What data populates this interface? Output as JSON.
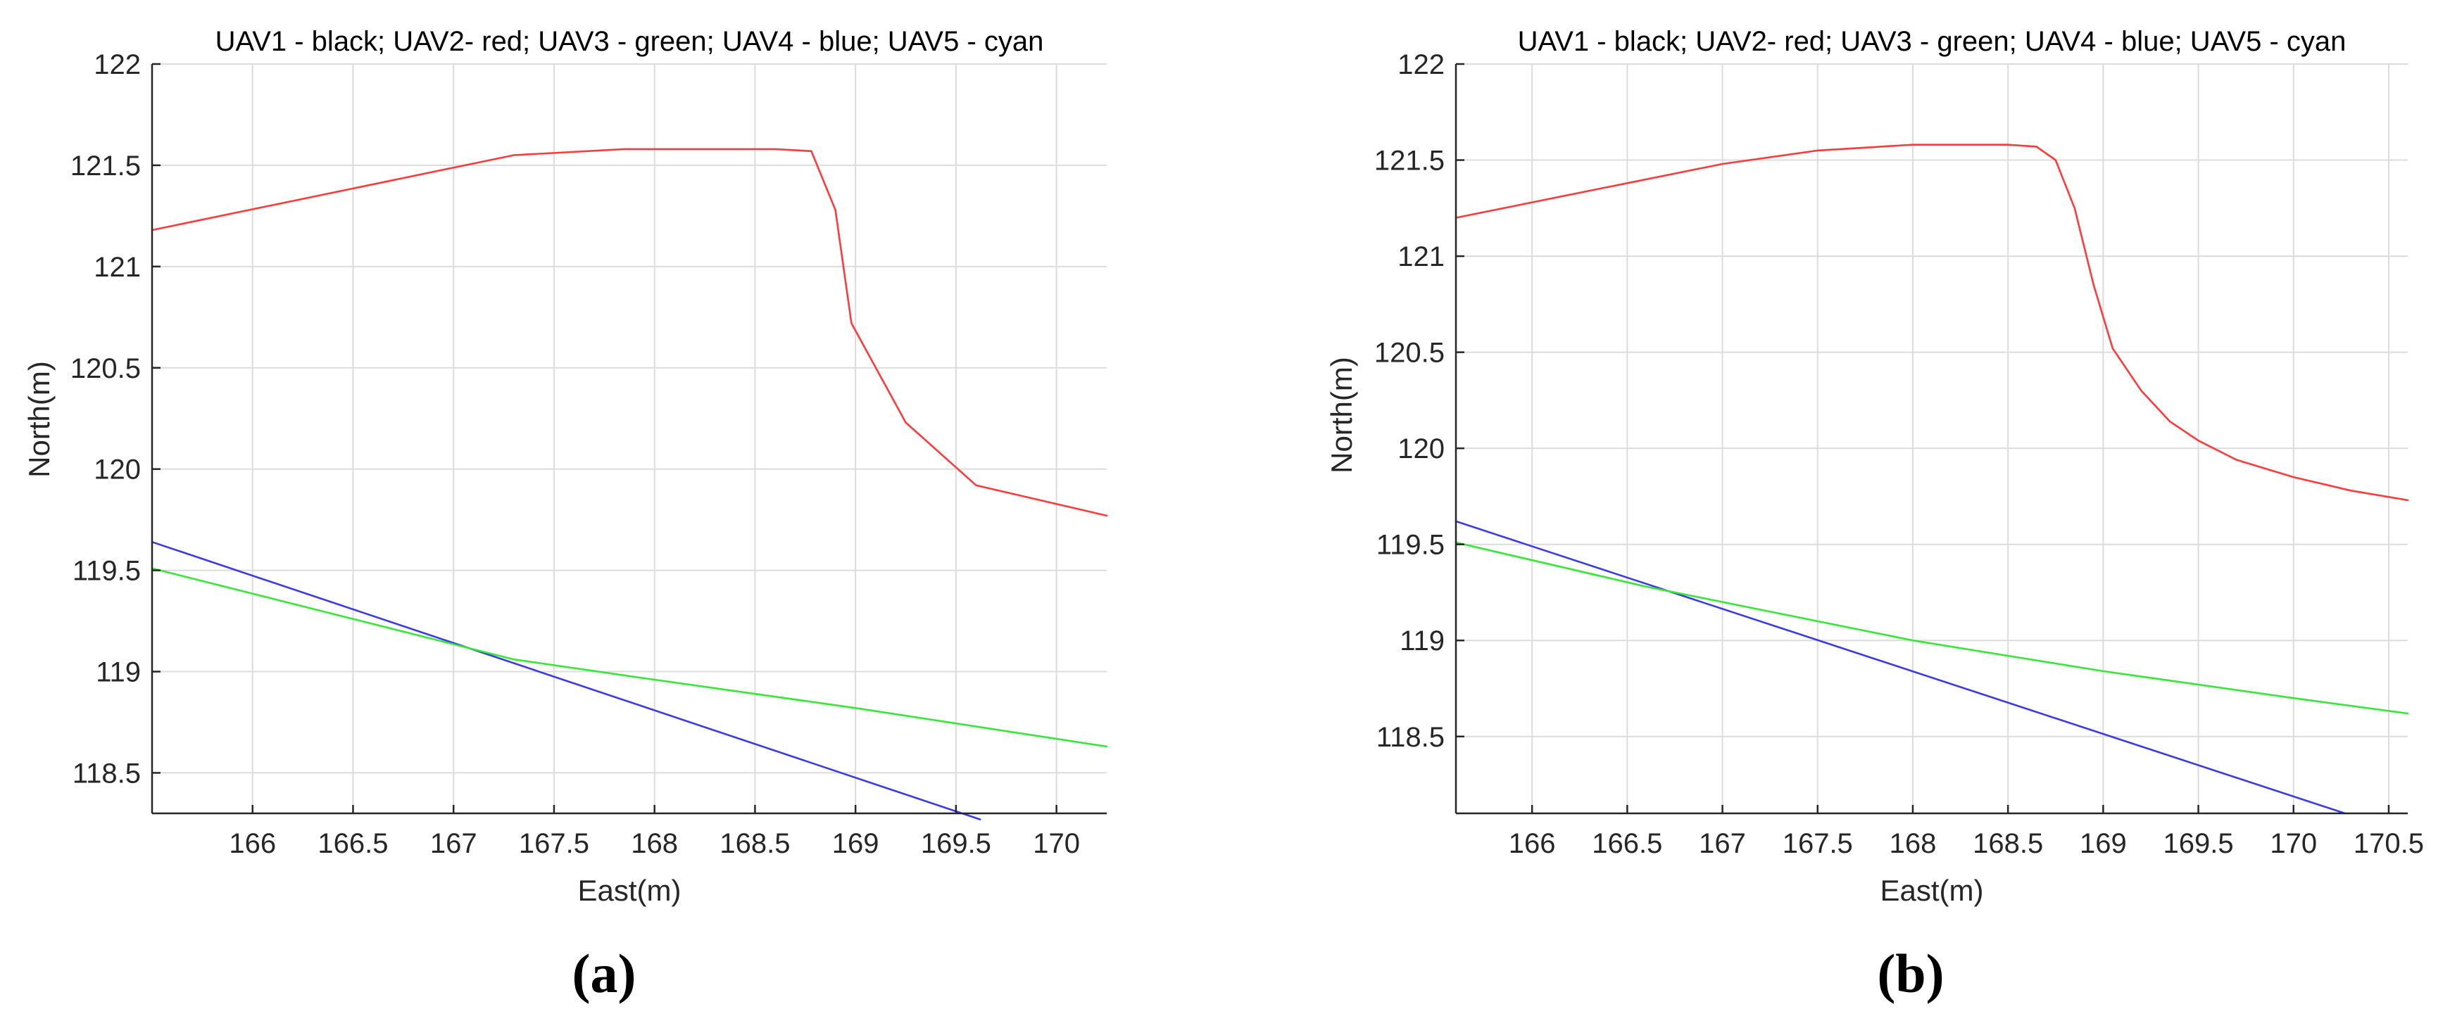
{
  "chart_data": [
    {
      "type": "line",
      "panel_label": "(a)",
      "title": "UAV1 - black; UAV2- red; UAV3 - green; UAV4 - blue; UAV5 - cyan",
      "xlabel": "East(m)",
      "ylabel": "North(m)",
      "xlim": [
        165.5,
        170.25
      ],
      "ylim": [
        118.3,
        122
      ],
      "xticks": [
        166,
        166.5,
        167,
        167.5,
        168,
        168.5,
        169,
        169.5,
        170
      ],
      "xtick_labels": [
        "166",
        "166.5",
        "167",
        "167.5",
        "168",
        "168.5",
        "169",
        "169.5",
        "170"
      ],
      "yticks": [
        118.5,
        119,
        119.5,
        120,
        120.5,
        121,
        121.5,
        122
      ],
      "ytick_labels": [
        "118.5",
        "119",
        "119.5",
        "120",
        "120.5",
        "121",
        "121.5",
        "122"
      ],
      "grid": true,
      "series": [
        {
          "color": "#ff3a3a",
          "x": [
            165.5,
            167.3,
            167.85,
            168.6,
            168.78,
            168.9,
            168.98,
            169.25,
            169.6,
            170.25
          ],
          "y": [
            121.18,
            121.55,
            121.58,
            121.58,
            121.57,
            121.28,
            120.72,
            120.23,
            119.92,
            119.77
          ]
        },
        {
          "color": "#3a3aea",
          "x": [
            165.5,
            169.62
          ],
          "y": [
            119.64,
            118.27
          ]
        },
        {
          "color": "#36e836",
          "x": [
            165.5,
            166.5,
            167.3,
            168.0,
            169.0,
            170.25
          ],
          "y": [
            119.51,
            119.26,
            119.06,
            118.96,
            118.82,
            118.63
          ]
        }
      ]
    },
    {
      "type": "line",
      "panel_label": "(b)",
      "title": "UAV1 - black; UAV2- red; UAV3 - green; UAV4 - blue; UAV5 - cyan",
      "xlabel": "East(m)",
      "ylabel": "North(m)",
      "xlim": [
        165.6,
        170.6
      ],
      "ylim": [
        118.1,
        122
      ],
      "xticks": [
        166,
        166.5,
        167,
        167.5,
        168,
        168.5,
        169,
        169.5,
        170,
        170.5
      ],
      "xtick_labels": [
        "166",
        "166.5",
        "167",
        "167.5",
        "168",
        "168.5",
        "169",
        "169.5",
        "170",
        "170.5"
      ],
      "yticks": [
        118.5,
        119,
        119.5,
        120,
        120.5,
        121,
        121.5,
        122
      ],
      "ytick_labels": [
        "118.5",
        "119",
        "119.5",
        "120",
        "120.5",
        "121",
        "121.5",
        "122"
      ],
      "grid": true,
      "series": [
        {
          "color": "#ff3a3a",
          "x": [
            165.6,
            166.5,
            167.0,
            167.5,
            168.0,
            168.5,
            168.65,
            168.75,
            168.85,
            168.95,
            169.05,
            169.2,
            169.35,
            169.5,
            169.7,
            170.0,
            170.3,
            170.6
          ],
          "y": [
            121.2,
            121.38,
            121.48,
            121.55,
            121.58,
            121.58,
            121.57,
            121.5,
            121.25,
            120.85,
            120.52,
            120.3,
            120.14,
            120.04,
            119.94,
            119.85,
            119.78,
            119.73
          ]
        },
        {
          "color": "#3a3aea",
          "x": [
            165.6,
            170.27
          ],
          "y": [
            119.62,
            118.1
          ]
        },
        {
          "color": "#36e836",
          "x": [
            165.6,
            166.6,
            167.3,
            168.0,
            169.0,
            170.0,
            170.6
          ],
          "y": [
            119.51,
            119.28,
            119.14,
            119.0,
            118.84,
            118.7,
            118.62
          ]
        }
      ]
    }
  ]
}
